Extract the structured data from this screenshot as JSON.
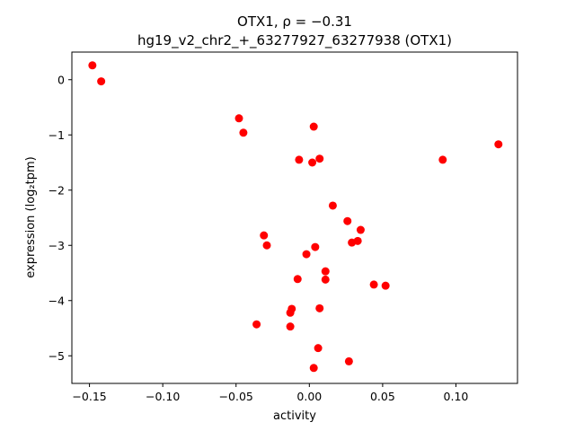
{
  "chart_data": {
    "type": "scatter",
    "title_line1": "OTX1, ρ = −0.31",
    "title_line2": "hg19_v2_chr2_+_63277927_63277938 (OTX1)",
    "xlabel": "activity",
    "ylabel": "expression (log₂tpm)",
    "xlim": [
      -0.162,
      0.142
    ],
    "ylim": [
      -5.5,
      0.5
    ],
    "xticks": [
      -0.15,
      -0.1,
      -0.05,
      0.0,
      0.05,
      0.1
    ],
    "xtick_labels": [
      "−0.15",
      "−0.10",
      "−0.05",
      "0.00",
      "0.05",
      "0.10"
    ],
    "yticks": [
      0,
      -1,
      -2,
      -3,
      -4,
      -5
    ],
    "ytick_labels": [
      "0",
      "−1",
      "−2",
      "−3",
      "−4",
      "−5"
    ],
    "grid": false,
    "marker_color": "#ff0000",
    "points": [
      {
        "x": -0.148,
        "y": 0.26
      },
      {
        "x": -0.142,
        "y": -0.03
      },
      {
        "x": -0.048,
        "y": -0.7
      },
      {
        "x": -0.045,
        "y": -0.96
      },
      {
        "x": 0.003,
        "y": -0.85
      },
      {
        "x": -0.007,
        "y": -1.45
      },
      {
        "x": 0.002,
        "y": -1.5
      },
      {
        "x": 0.007,
        "y": -1.43
      },
      {
        "x": 0.129,
        "y": -1.17
      },
      {
        "x": 0.091,
        "y": -1.45
      },
      {
        "x": 0.016,
        "y": -2.28
      },
      {
        "x": 0.026,
        "y": -2.56
      },
      {
        "x": 0.035,
        "y": -2.72
      },
      {
        "x": 0.033,
        "y": -2.92
      },
      {
        "x": 0.029,
        "y": -2.95
      },
      {
        "x": -0.031,
        "y": -2.82
      },
      {
        "x": -0.029,
        "y": -3.0
      },
      {
        "x": 0.004,
        "y": -3.03
      },
      {
        "x": -0.002,
        "y": -3.16
      },
      {
        "x": 0.011,
        "y": -3.47
      },
      {
        "x": 0.011,
        "y": -3.62
      },
      {
        "x": -0.008,
        "y": -3.61
      },
      {
        "x": 0.044,
        "y": -3.71
      },
      {
        "x": 0.052,
        "y": -3.73
      },
      {
        "x": -0.012,
        "y": -4.15
      },
      {
        "x": -0.013,
        "y": -4.22
      },
      {
        "x": 0.007,
        "y": -4.14
      },
      {
        "x": -0.036,
        "y": -4.43
      },
      {
        "x": -0.013,
        "y": -4.47
      },
      {
        "x": 0.006,
        "y": -4.86
      },
      {
        "x": 0.027,
        "y": -5.1
      },
      {
        "x": 0.003,
        "y": -5.22
      }
    ]
  }
}
